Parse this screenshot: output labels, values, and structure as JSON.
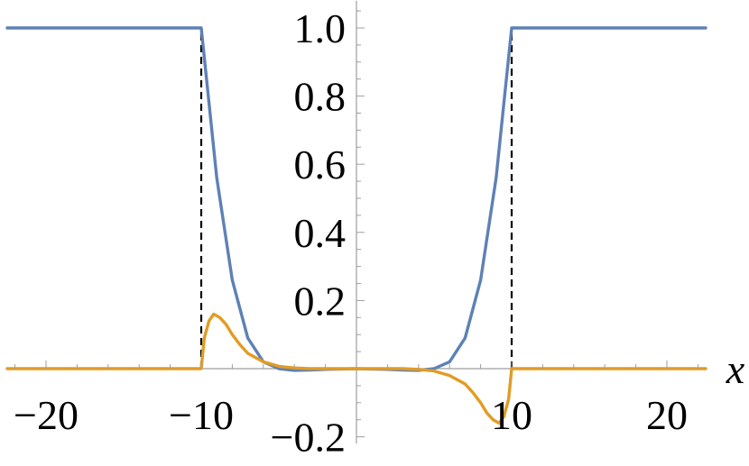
{
  "chart_data": {
    "type": "line",
    "title": "",
    "xlabel": "x",
    "ylabel": "",
    "xlim": [
      -22.5,
      22.5
    ],
    "ylim": [
      -0.22,
      1.08
    ],
    "x_ticks": [
      -20,
      -10,
      10,
      20
    ],
    "x_tick_labels": [
      "−20",
      "−10",
      "10",
      "20"
    ],
    "y_ticks": [
      1.0,
      0.8,
      0.6,
      0.4,
      0.2,
      -0.2
    ],
    "y_tick_labels": [
      "1.0",
      "0.8",
      "0.6",
      "0.4",
      "0.2",
      "−0.2"
    ],
    "grid": false,
    "legend": "none",
    "reference_lines": [
      {
        "style": "dashed",
        "x": -10,
        "y_range": [
          0,
          1
        ]
      },
      {
        "style": "dashed",
        "x": 10,
        "y_range": [
          0,
          1
        ]
      }
    ],
    "series": [
      {
        "color": "#5e81b5",
        "x": [
          -22.5,
          -10.0,
          -9.0,
          -8.0,
          -7.0,
          -6.0,
          -5.0,
          -4.0,
          -3.0,
          -2.0,
          0.0,
          2.0,
          3.0,
          4.0,
          5.0,
          6.0,
          7.0,
          8.0,
          9.0,
          10.0,
          22.5
        ],
        "values": [
          1.0,
          1.0,
          0.56,
          0.26,
          0.09,
          0.02,
          0.0,
          -0.005,
          -0.004,
          -0.002,
          0.0,
          -0.002,
          -0.004,
          -0.005,
          0.0,
          0.02,
          0.09,
          0.26,
          0.56,
          1.0,
          1.0
        ]
      },
      {
        "color": "#e19c24",
        "x": [
          -22.5,
          -10.0,
          -9.8,
          -9.5,
          -9.2,
          -8.8,
          -8.4,
          -8.0,
          -7.5,
          -7.0,
          -6.0,
          -5.0,
          -4.0,
          -3.0,
          -2.0,
          0.0,
          2.0,
          3.0,
          4.0,
          5.0,
          6.0,
          7.0,
          7.5,
          8.0,
          8.4,
          8.8,
          9.2,
          9.5,
          9.8,
          10.0,
          22.5
        ],
        "values": [
          0.0,
          0.0,
          0.09,
          0.14,
          0.16,
          0.15,
          0.13,
          0.1,
          0.07,
          0.045,
          0.02,
          0.007,
          0.002,
          0.0,
          0.0,
          0.0,
          0.0,
          0.0,
          -0.002,
          -0.007,
          -0.02,
          -0.045,
          -0.07,
          -0.1,
          -0.13,
          -0.15,
          -0.16,
          -0.14,
          -0.09,
          0.0,
          0.0
        ]
      }
    ]
  }
}
